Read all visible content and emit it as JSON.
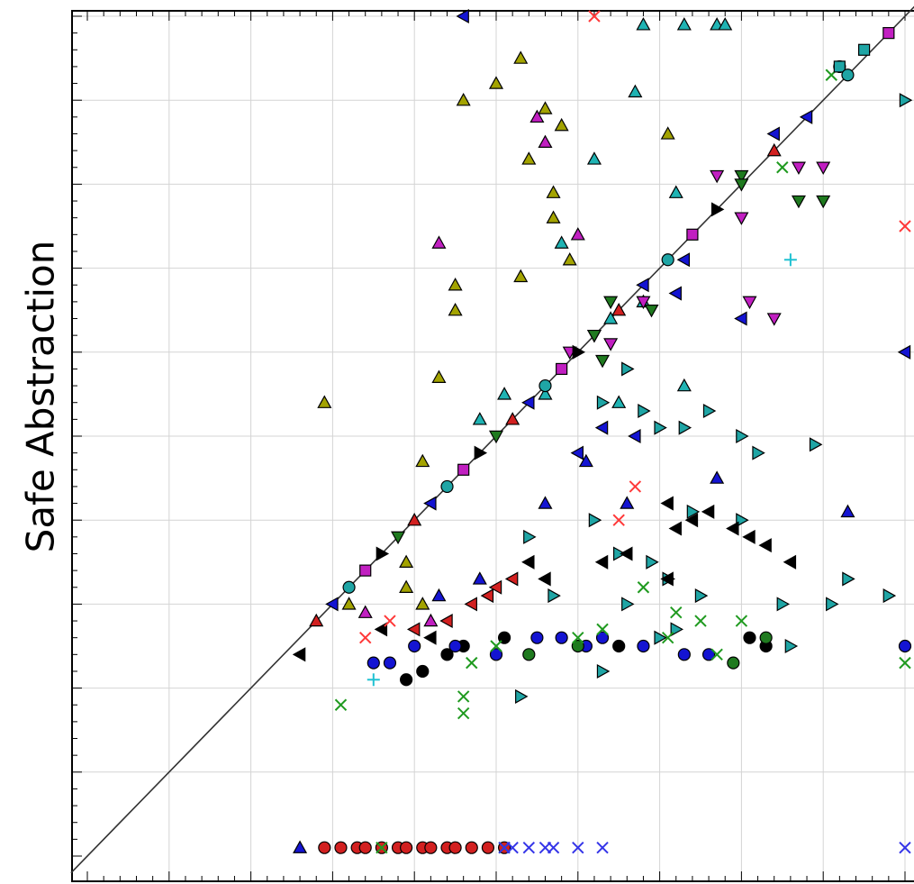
{
  "chart_data": {
    "type": "scatter",
    "title": "",
    "xlabel": "",
    "ylabel": "Safe Abstraction",
    "xlim": [
      0,
      10
    ],
    "ylim": [
      0,
      10
    ],
    "grid": true,
    "legend": "none",
    "diagonal_reference_line": true,
    "series": [
      {
        "marker": "triangle-up",
        "color": "#a3a300",
        "points": [
          [
            5.3,
            9.5
          ],
          [
            5.0,
            9.2
          ],
          [
            4.6,
            9.0
          ],
          [
            5.4,
            8.3
          ],
          [
            5.6,
            8.9
          ],
          [
            5.8,
            8.7
          ],
          [
            7.1,
            8.6
          ],
          [
            5.7,
            7.9
          ],
          [
            5.7,
            7.6
          ],
          [
            5.9,
            7.1
          ],
          [
            5.3,
            6.9
          ],
          [
            4.5,
            6.8
          ],
          [
            4.5,
            6.5
          ],
          [
            4.3,
            5.7
          ],
          [
            4.1,
            4.7
          ],
          [
            3.9,
            3.5
          ],
          [
            3.9,
            3.2
          ],
          [
            4.1,
            3.0
          ],
          [
            3.2,
            3.0
          ],
          [
            2.9,
            5.4
          ]
        ]
      },
      {
        "marker": "triangle-up",
        "color": "#c11fc1",
        "points": [
          [
            5.6,
            8.5
          ],
          [
            6.0,
            7.4
          ],
          [
            5.5,
            8.8
          ],
          [
            4.3,
            7.3
          ],
          [
            3.4,
            2.9
          ],
          [
            4.2,
            2.8
          ]
        ]
      },
      {
        "marker": "triangle-up",
        "color": "#1fb3b3",
        "points": [
          [
            6.8,
            9.9
          ],
          [
            7.3,
            9.9
          ],
          [
            7.7,
            9.9
          ],
          [
            7.8,
            9.9
          ],
          [
            6.7,
            9.1
          ],
          [
            6.2,
            8.3
          ],
          [
            7.2,
            7.9
          ],
          [
            5.8,
            7.3
          ],
          [
            6.4,
            6.4
          ],
          [
            6.8,
            6.6
          ],
          [
            5.6,
            5.5
          ],
          [
            6.5,
            5.4
          ],
          [
            7.3,
            5.6
          ],
          [
            4.8,
            5.2
          ],
          [
            5.1,
            5.5
          ]
        ]
      },
      {
        "marker": "triangle-up",
        "color": "#1414d2",
        "points": [
          [
            2.6,
            0.1
          ],
          [
            6.1,
            4.7
          ],
          [
            5.6,
            4.2
          ],
          [
            6.6,
            4.2
          ],
          [
            7.7,
            4.5
          ],
          [
            9.3,
            4.1
          ],
          [
            4.8,
            3.3
          ],
          [
            4.3,
            3.1
          ]
        ]
      },
      {
        "marker": "triangle-down",
        "color": "#1f7a1f",
        "points": [
          [
            8.0,
            8.1
          ],
          [
            8.7,
            7.8
          ],
          [
            9.0,
            7.8
          ],
          [
            6.2,
            6.2
          ],
          [
            6.3,
            5.9
          ],
          [
            6.4,
            6.6
          ],
          [
            6.9,
            6.5
          ]
        ]
      },
      {
        "marker": "triangle-down",
        "color": "#c11fc1",
        "points": [
          [
            7.7,
            8.1
          ],
          [
            8.7,
            8.2
          ],
          [
            9.0,
            8.2
          ],
          [
            8.0,
            7.6
          ],
          [
            8.1,
            6.6
          ],
          [
            8.4,
            6.4
          ],
          [
            5.9,
            6.0
          ],
          [
            6.8,
            6.6
          ],
          [
            6.4,
            6.1
          ]
        ]
      },
      {
        "marker": "triangle-right",
        "color": "#1fa5a5",
        "points": [
          [
            6.3,
            5.4
          ],
          [
            6.6,
            5.8
          ],
          [
            6.8,
            5.3
          ],
          [
            7.0,
            5.1
          ],
          [
            7.3,
            5.1
          ],
          [
            7.6,
            5.3
          ],
          [
            8.0,
            5.0
          ],
          [
            8.2,
            4.8
          ],
          [
            8.9,
            4.9
          ],
          [
            9.3,
            3.3
          ],
          [
            9.8,
            3.1
          ],
          [
            8.0,
            4.0
          ],
          [
            7.4,
            4.1
          ],
          [
            6.2,
            4.0
          ],
          [
            5.4,
            3.8
          ],
          [
            6.5,
            3.6
          ],
          [
            6.9,
            3.5
          ],
          [
            7.1,
            3.3
          ],
          [
            7.5,
            3.1
          ],
          [
            8.5,
            3.0
          ],
          [
            9.1,
            3.0
          ],
          [
            7.0,
            2.6
          ],
          [
            8.6,
            2.5
          ],
          [
            10.0,
            9.0
          ],
          [
            6.6,
            3.0
          ],
          [
            5.7,
            3.1
          ],
          [
            6.3,
            2.2
          ],
          [
            7.2,
            2.7
          ],
          [
            5.3,
            1.9
          ]
        ]
      },
      {
        "marker": "triangle-left",
        "color": "#000000",
        "points": [
          [
            7.1,
            4.2
          ],
          [
            7.2,
            3.9
          ],
          [
            7.4,
            4.0
          ],
          [
            7.6,
            4.1
          ],
          [
            7.9,
            3.9
          ],
          [
            8.1,
            3.8
          ],
          [
            8.3,
            3.7
          ],
          [
            8.6,
            3.5
          ],
          [
            6.3,
            3.5
          ],
          [
            6.6,
            3.6
          ],
          [
            7.1,
            3.3
          ],
          [
            5.4,
            3.5
          ],
          [
            5.6,
            3.3
          ],
          [
            4.2,
            2.6
          ],
          [
            3.6,
            2.7
          ],
          [
            2.6,
            2.4
          ]
        ]
      },
      {
        "marker": "triangle-left",
        "color": "#1414d2",
        "points": [
          [
            4.6,
            10.0
          ],
          [
            8.4,
            8.6
          ],
          [
            7.3,
            7.1
          ],
          [
            7.2,
            6.7
          ],
          [
            8.0,
            6.4
          ],
          [
            6.3,
            5.1
          ],
          [
            6.0,
            4.8
          ],
          [
            6.7,
            5.0
          ],
          [
            10.0,
            6.0
          ]
        ]
      },
      {
        "marker": "triangle-left",
        "color": "#d22020",
        "points": [
          [
            4.7,
            3.0
          ],
          [
            4.9,
            3.1
          ],
          [
            5.0,
            3.2
          ],
          [
            5.2,
            3.3
          ],
          [
            4.4,
            2.8
          ],
          [
            4.0,
            2.7
          ]
        ]
      },
      {
        "marker": "circle",
        "color": "#000000",
        "points": [
          [
            3.9,
            2.1
          ],
          [
            4.1,
            2.2
          ],
          [
            4.4,
            2.4
          ],
          [
            4.6,
            2.5
          ],
          [
            5.1,
            2.6
          ],
          [
            6.5,
            2.5
          ],
          [
            8.1,
            2.6
          ],
          [
            8.3,
            2.5
          ]
        ]
      },
      {
        "marker": "circle",
        "color": "#1414d2",
        "points": [
          [
            4.5,
            2.5
          ],
          [
            5.0,
            2.4
          ],
          [
            5.5,
            2.6
          ],
          [
            5.8,
            2.6
          ],
          [
            6.1,
            2.5
          ],
          [
            6.3,
            2.6
          ],
          [
            6.8,
            2.5
          ],
          [
            7.3,
            2.4
          ],
          [
            7.6,
            2.4
          ],
          [
            4.0,
            2.5
          ],
          [
            3.7,
            2.3
          ],
          [
            3.5,
            2.3
          ],
          [
            10.0,
            2.5
          ]
        ]
      },
      {
        "marker": "circle",
        "color": "#1f7a1f",
        "points": [
          [
            5.4,
            2.4
          ],
          [
            6.0,
            2.5
          ],
          [
            8.3,
            2.6
          ],
          [
            9.2,
            9.4
          ],
          [
            7.9,
            2.3
          ]
        ]
      },
      {
        "marker": "circle",
        "color": "#d22020",
        "points": [
          [
            2.9,
            0.1
          ],
          [
            3.1,
            0.1
          ],
          [
            3.3,
            0.1
          ],
          [
            3.4,
            0.1
          ],
          [
            3.6,
            0.1
          ],
          [
            3.8,
            0.1
          ],
          [
            3.9,
            0.1
          ],
          [
            4.1,
            0.1
          ],
          [
            4.2,
            0.1
          ],
          [
            4.4,
            0.1
          ],
          [
            4.5,
            0.1
          ],
          [
            4.7,
            0.1
          ],
          [
            4.9,
            0.1
          ],
          [
            5.1,
            0.1
          ]
        ]
      },
      {
        "marker": "x",
        "color": "#1f9a1f",
        "points": [
          [
            6.8,
            3.2
          ],
          [
            7.2,
            2.9
          ],
          [
            7.5,
            2.8
          ],
          [
            8.0,
            2.8
          ],
          [
            7.1,
            2.6
          ],
          [
            7.7,
            2.4
          ],
          [
            6.0,
            2.6
          ],
          [
            5.0,
            2.5
          ],
          [
            4.7,
            2.3
          ],
          [
            4.6,
            1.9
          ],
          [
            4.6,
            1.7
          ],
          [
            3.1,
            1.8
          ],
          [
            6.3,
            2.7
          ],
          [
            10.0,
            2.3
          ],
          [
            9.1,
            9.3
          ],
          [
            8.5,
            8.2
          ],
          [
            3.6,
            0.1
          ],
          [
            5.1,
            0.1
          ]
        ]
      },
      {
        "marker": "x",
        "color": "#3434e8",
        "points": [
          [
            5.1,
            0.1
          ],
          [
            5.2,
            0.1
          ],
          [
            5.4,
            0.1
          ],
          [
            5.6,
            0.1
          ],
          [
            5.7,
            0.1
          ],
          [
            6.0,
            0.1
          ],
          [
            6.3,
            0.1
          ],
          [
            10.0,
            0.1
          ]
        ]
      },
      {
        "marker": "x",
        "color": "#ff3838",
        "points": [
          [
            6.7,
            4.4
          ],
          [
            6.5,
            4.0
          ],
          [
            6.2,
            10.0
          ],
          [
            10.0,
            7.5
          ],
          [
            3.7,
            2.8
          ],
          [
            3.4,
            2.6
          ]
        ]
      },
      {
        "marker": "plus",
        "color": "#1fc1d2",
        "points": [
          [
            8.6,
            7.1
          ],
          [
            3.5,
            2.1
          ]
        ]
      },
      {
        "marker": "square",
        "color": "#1fa5a5",
        "points": [
          [
            9.5,
            9.6
          ],
          [
            9.2,
            9.4
          ]
        ]
      },
      {
        "marker": "diagonal-mixed",
        "color": "#d22020",
        "points": [
          [
            2.8,
            2.8
          ],
          [
            3.0,
            3.0
          ],
          [
            3.2,
            3.2
          ],
          [
            3.4,
            3.4
          ],
          [
            3.6,
            3.6
          ],
          [
            3.8,
            3.8
          ],
          [
            4.0,
            4.0
          ],
          [
            4.2,
            4.2
          ],
          [
            4.4,
            4.4
          ],
          [
            4.6,
            4.6
          ],
          [
            4.8,
            4.8
          ],
          [
            5.0,
            5.0
          ],
          [
            5.2,
            5.2
          ],
          [
            5.4,
            5.4
          ],
          [
            5.6,
            5.6
          ],
          [
            5.8,
            5.8
          ],
          [
            6.0,
            6.0
          ],
          [
            6.2,
            6.2
          ],
          [
            6.5,
            6.5
          ],
          [
            6.8,
            6.8
          ],
          [
            7.1,
            7.1
          ],
          [
            7.4,
            7.4
          ],
          [
            7.7,
            7.7
          ],
          [
            8.0,
            8.0
          ],
          [
            8.4,
            8.4
          ],
          [
            8.8,
            8.8
          ],
          [
            9.3,
            9.3
          ],
          [
            9.8,
            9.8
          ]
        ]
      }
    ]
  }
}
